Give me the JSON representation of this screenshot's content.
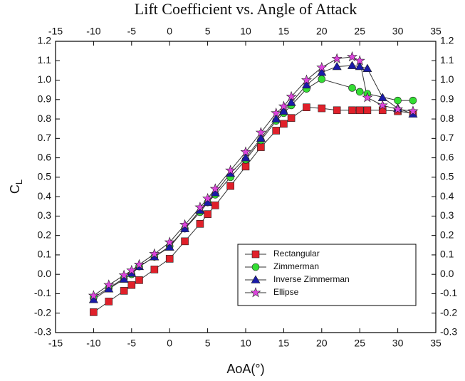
{
  "chart_data": {
    "type": "line",
    "title": "Lift Coefficient vs. Angle of Attack",
    "xlabel": "AoA(°)",
    "ylabel": "C",
    "ylabel_sub": "L",
    "xlim": [
      -15,
      35
    ],
    "xticks": [
      -15,
      -10,
      -5,
      0,
      5,
      10,
      15,
      20,
      25,
      30,
      35
    ],
    "ylim": [
      -0.3,
      1.2
    ],
    "yticks": [
      -0.3,
      -0.2,
      -0.1,
      {
        "value": 0,
        "label": "0.0"
      },
      0.1,
      0.2,
      0.3,
      0.4,
      0.5,
      0.6,
      0.7,
      0.8,
      0.9,
      {
        "value": 1,
        "label": "1.0"
      },
      1.1,
      1.2
    ],
    "legend": "lower right",
    "series": [
      {
        "name": "Rectangular",
        "color": "#e0202a",
        "marker": "square",
        "x": [
          -10,
          -8,
          -6,
          -5,
          -4,
          -2,
          0,
          2,
          4,
          5,
          6,
          8,
          10,
          12,
          14,
          15,
          16,
          18,
          20,
          22,
          24,
          25,
          26,
          28,
          30,
          32
        ],
        "values": [
          -0.195,
          -0.14,
          -0.085,
          -0.055,
          -0.03,
          0.025,
          0.08,
          0.17,
          0.26,
          0.31,
          0.355,
          0.455,
          0.555,
          0.655,
          0.74,
          0.775,
          0.805,
          0.86,
          0.855,
          0.845,
          0.845,
          0.845,
          0.845,
          0.845,
          0.84,
          0.83
        ]
      },
      {
        "name": "Zimmerman",
        "color": "#33dd33",
        "marker": "circle",
        "x": [
          -10,
          -8,
          -6,
          -5,
          -4,
          -2,
          0,
          2,
          4,
          5,
          6,
          8,
          10,
          12,
          14,
          15,
          16,
          18,
          20,
          24,
          25,
          26,
          30,
          32
        ],
        "values": [
          -0.12,
          -0.07,
          -0.02,
          0.0,
          0.04,
          0.09,
          0.145,
          0.235,
          0.32,
          0.37,
          0.41,
          0.5,
          0.59,
          0.69,
          0.79,
          0.83,
          0.87,
          0.955,
          1.005,
          0.96,
          0.94,
          0.93,
          0.895,
          0.895
        ]
      },
      {
        "name": "Inverse Zimmerman",
        "color": "#1a1aa8",
        "marker": "triangle",
        "x": [
          -10,
          -8,
          -6,
          -5,
          -4,
          -2,
          0,
          2,
          4,
          5,
          6,
          8,
          10,
          12,
          14,
          15,
          16,
          18,
          20,
          22,
          24,
          25,
          26,
          28,
          30,
          32
        ],
        "values": [
          -0.13,
          -0.075,
          -0.025,
          0.005,
          0.04,
          0.09,
          0.14,
          0.235,
          0.33,
          0.37,
          0.42,
          0.52,
          0.6,
          0.7,
          0.8,
          0.84,
          0.885,
          0.975,
          1.04,
          1.07,
          1.075,
          1.07,
          1.06,
          0.91,
          0.855,
          0.825
        ]
      },
      {
        "name": "Ellipse",
        "color": "#dd44dd",
        "marker": "star",
        "x": [
          -10,
          -8,
          -6,
          -5,
          -4,
          -2,
          0,
          2,
          4,
          5,
          6,
          8,
          10,
          12,
          14,
          15,
          16,
          18,
          20,
          22,
          24,
          25,
          26,
          28,
          30,
          32
        ],
        "values": [
          -0.11,
          -0.055,
          -0.005,
          0.02,
          0.05,
          0.105,
          0.165,
          0.255,
          0.345,
          0.39,
          0.44,
          0.535,
          0.63,
          0.73,
          0.83,
          0.865,
          0.915,
          1.0,
          1.065,
          1.11,
          1.12,
          1.1,
          0.91,
          0.87,
          0.85,
          0.84
        ]
      }
    ]
  }
}
